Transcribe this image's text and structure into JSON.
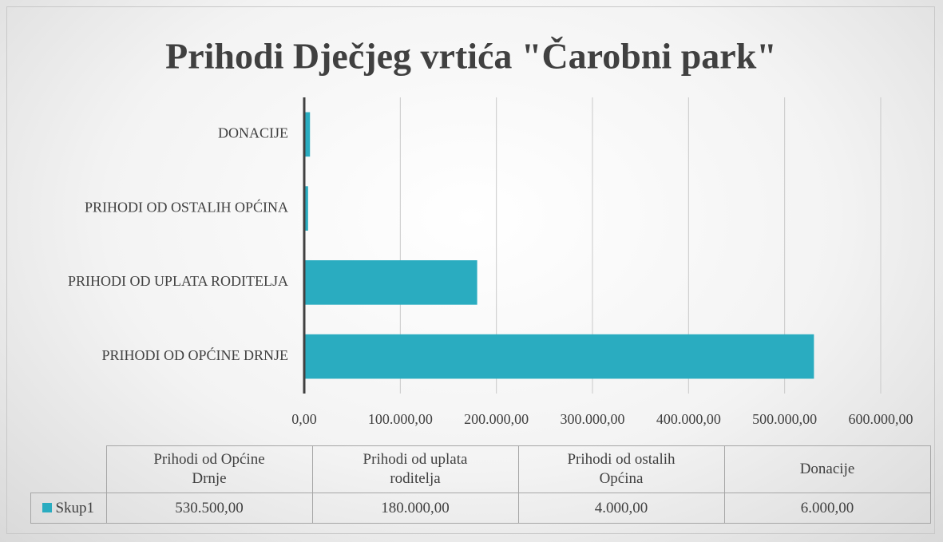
{
  "chart_data": {
    "type": "bar",
    "orientation": "horizontal",
    "title": "Prihodi Dječjeg vrtića \"Čarobni park\"",
    "categories": [
      "Prihodi od Općine Drnje",
      "Prihodi od uplata roditelja",
      "Prihodi od ostalih Općina",
      "Donacije"
    ],
    "series": [
      {
        "name": "Skup1",
        "color": "#2aacc0",
        "values": [
          530500,
          180000,
          4000,
          6000
        ],
        "value_labels": [
          "530.500,00",
          "180.000,00",
          "4.000,00",
          "6.000,00"
        ]
      }
    ],
    "xlim": [
      0,
      600000
    ],
    "xticks": [
      {
        "value": 0,
        "label": "0,00"
      },
      {
        "value": 100000,
        "label": "100.000,00"
      },
      {
        "value": 200000,
        "label": "200.000,00"
      },
      {
        "value": 300000,
        "label": "300.000,00"
      },
      {
        "value": 400000,
        "label": "400.000,00"
      },
      {
        "value": 500000,
        "label": "500.000,00"
      },
      {
        "value": 600000,
        "label": "600.000,00"
      }
    ],
    "grid": true,
    "data_table": true
  }
}
